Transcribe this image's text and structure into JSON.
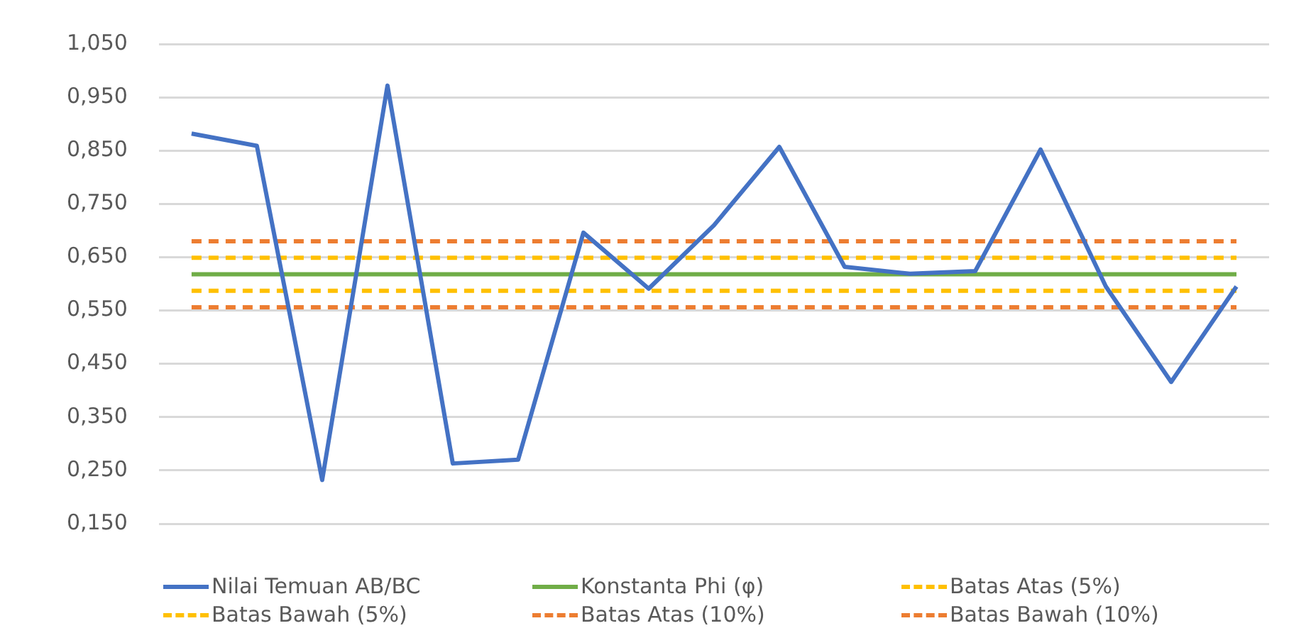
{
  "chart_data": {
    "type": "line",
    "categories": [
      null,
      null,
      null,
      null,
      null,
      null,
      null,
      null,
      null,
      null,
      null,
      null,
      null,
      null,
      null,
      null,
      null
    ],
    "series": [
      {
        "name": "Nilai Temuan AB/BC",
        "color": "#4472c4",
        "values": [
          0.882,
          0.859,
          0.232,
          0.972,
          0.263,
          0.27,
          0.696,
          0.591,
          0.71,
          0.857,
          0.632,
          0.619,
          0.624,
          0.852,
          0.595,
          0.416,
          0.595
        ]
      },
      {
        "name": "Konstanta Phi (φ)",
        "color": "#70ad47",
        "values": [
          0.618,
          0.618,
          0.618,
          0.618,
          0.618,
          0.618,
          0.618,
          0.618,
          0.618,
          0.618,
          0.618,
          0.618,
          0.618,
          0.618,
          0.618,
          0.618,
          0.618
        ]
      },
      {
        "name": "Batas Atas (5%)",
        "color": "#ffc000",
        "line_style": "dashed",
        "values": [
          0.649,
          0.649,
          0.649,
          0.649,
          0.649,
          0.649,
          0.649,
          0.649,
          0.649,
          0.649,
          0.649,
          0.649,
          0.649,
          0.649,
          0.649,
          0.649,
          0.649
        ]
      },
      {
        "name": "Batas Bawah (5%)",
        "color": "#ffc000",
        "line_style": "dashed",
        "values": [
          0.587,
          0.587,
          0.587,
          0.587,
          0.587,
          0.587,
          0.587,
          0.587,
          0.587,
          0.587,
          0.587,
          0.587,
          0.587,
          0.587,
          0.587,
          0.587,
          0.587
        ]
      },
      {
        "name": "Batas Atas (10%)",
        "color": "#ed7d31",
        "line_style": "dashed",
        "values": [
          0.68,
          0.68,
          0.68,
          0.68,
          0.68,
          0.68,
          0.68,
          0.68,
          0.68,
          0.68,
          0.68,
          0.68,
          0.68,
          0.68,
          0.68,
          0.68,
          0.68
        ]
      },
      {
        "name": "Batas Bawah (10%)",
        "color": "#ed7d31",
        "line_style": "dashed",
        "values": [
          0.556,
          0.556,
          0.556,
          0.556,
          0.556,
          0.556,
          0.556,
          0.556,
          0.556,
          0.556,
          0.556,
          0.556,
          0.556,
          0.556,
          0.556,
          0.556,
          0.556
        ]
      }
    ],
    "ylim": [
      0.15,
      1.05
    ],
    "yticks": [
      {
        "value": 0.15,
        "label": "0,150"
      },
      {
        "value": 0.25,
        "label": "0,250"
      },
      {
        "value": 0.35,
        "label": "0,350"
      },
      {
        "value": 0.45,
        "label": "0,450"
      },
      {
        "value": 0.55,
        "label": "0,550"
      },
      {
        "value": 0.65,
        "label": "0,650"
      },
      {
        "value": 0.75,
        "label": "0,750"
      },
      {
        "value": 0.85,
        "label": "0,850"
      },
      {
        "value": 0.95,
        "label": "0,950"
      },
      {
        "value": 1.05,
        "label": "1,050"
      }
    ],
    "grid": "y",
    "legend": "bottom",
    "marker": "none"
  }
}
